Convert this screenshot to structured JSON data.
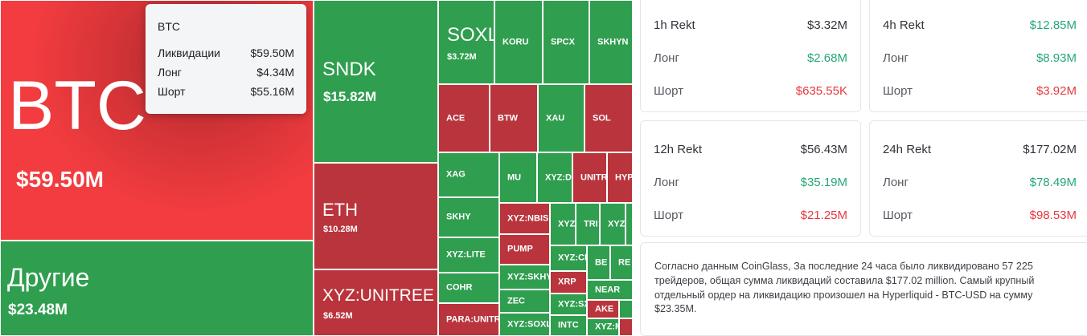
{
  "treemap": {
    "btc": {
      "symbol": "BTC",
      "value": "$59.50M"
    },
    "others": {
      "symbol": "Другие",
      "value": "$23.48M"
    },
    "sndk": {
      "symbol": "SNDK",
      "value": "$15.82M"
    },
    "eth": {
      "symbol": "ETH",
      "value": "$10.28M"
    },
    "xyz_unitree": {
      "symbol": "XYZ:UNITREE",
      "value": "$6.52M"
    },
    "soxl": {
      "symbol": "SOXL",
      "value": "$3.72M"
    },
    "small": {
      "koru": "KORU",
      "spcx": "SPCX",
      "skhyn": "SKHYN",
      "ace": "ACE",
      "btw": "BTW",
      "xau": "XAU",
      "sol": "SOL",
      "xag": "XAG",
      "mu": "MU",
      "xyz_d": "XYZ:D",
      "unitr": "UNITR",
      "hyp": "HYP",
      "skhy": "SKHY",
      "xyz_nbis": "XYZ:NBIS",
      "xyz1": "XYZ",
      "tri": "TRI",
      "xyz2": "XYZ",
      "xyz_lite": "XYZ:LITE",
      "pump": "PUMP",
      "xyz_cr": "XYZ:CR",
      "be": "BE",
      "re": "RE",
      "cohr": "COHR",
      "xyz_skhy": "XYZ:SKHY",
      "xrp": "XRP",
      "near": "NEAR",
      "zec": "ZEC",
      "xyz_sx": "XYZ:SX",
      "ake": "AKE",
      "para_unitr": "PARA:UNITR",
      "xyz_soxl": "XYZ:SOXL",
      "intc": "INTC",
      "xyz_m": "XYZ:M"
    }
  },
  "tooltip": {
    "title": "BTC",
    "rows": [
      {
        "label": "Ликвидации",
        "value": "$59.50M"
      },
      {
        "label": "Лонг",
        "value": "$4.34M"
      },
      {
        "label": "Шорт",
        "value": "$55.16M"
      }
    ]
  },
  "colors": {
    "long_green": "#25a876",
    "short_red": "#e5393d",
    "tile_green": "#2f9e4f",
    "tile_red": "#b9343c",
    "tile_bright_red": "#f23c3f"
  },
  "cards": [
    {
      "title": "1h Rekt",
      "total": "$3.32M",
      "long_label": "Лонг",
      "long": "$2.68M",
      "short_label": "Шорт",
      "short": "$635.55K"
    },
    {
      "title": "4h Rekt",
      "total": "$12.85M",
      "long_label": "Лонг",
      "long": "$8.93M",
      "short_label": "Шорт",
      "short": "$3.92M"
    },
    {
      "title": "12h Rekt",
      "total": "$56.43M",
      "long_label": "Лонг",
      "long": "$35.19M",
      "short_label": "Шорт",
      "short": "$21.25M"
    },
    {
      "title": "24h Rekt",
      "total": "$177.02M",
      "long_label": "Лонг",
      "long": "$78.49M",
      "short_label": "Шорт",
      "short": "$98.53M"
    }
  ],
  "summary": {
    "text": "Согласно данным CoinGlass, За последние 24 часа было ликвидировано 57 225 трейдеров, общая сумма ликвидаций составила $177.02 million. Самый крупный отдельный ордер на ликвидацию произошел на Hyperliquid - BTC-USD на сумму $23.35M."
  }
}
